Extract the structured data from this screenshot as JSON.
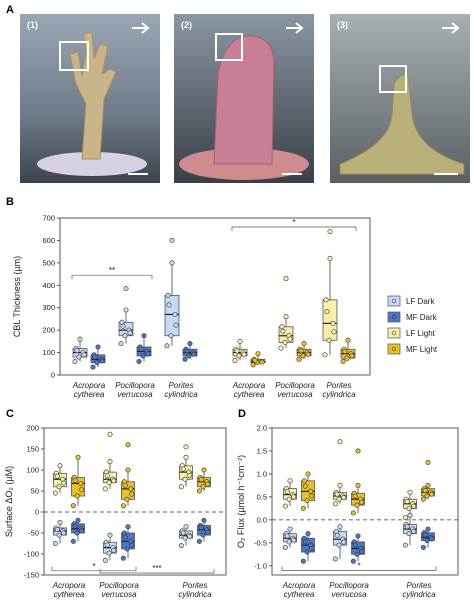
{
  "panels": {
    "a": "A",
    "b": "B",
    "c": "C",
    "d": "D"
  },
  "photos": [
    {
      "num": "(1)",
      "subject": "branching coral (Acropora)",
      "color": "#c9b48a"
    },
    {
      "num": "(2)",
      "subject": "massive coral (Pocillopora)",
      "color": "#c87f94"
    },
    {
      "num": "(3)",
      "subject": "columnar coral (Porites)",
      "color": "#b8b078"
    }
  ],
  "colors": {
    "lf_dark": "#c5daf2",
    "mf_dark": "#4a78c8",
    "lf_light": "#f6efae",
    "mf_light": "#e6c22a"
  },
  "species": [
    {
      "genus": "Acropora",
      "epithet": "cytherea"
    },
    {
      "genus": "Pocillopora",
      "epithet": "verrucosa"
    },
    {
      "genus": "Porites",
      "epithet": "cylindrica"
    }
  ],
  "legend": [
    "LF Dark",
    "MF Dark",
    "LF Light",
    "MF Light"
  ],
  "chart_data": [
    {
      "id": "B",
      "type": "box",
      "ylabel": "CBL Thickness (µm)",
      "ylim": [
        0,
        700
      ],
      "yticks": [
        0,
        100,
        200,
        300,
        400,
        500,
        600,
        700
      ],
      "groups": [
        {
          "name": "LF Dark",
          "species": "Acropora cytherea",
          "q1": 80,
          "median": 100,
          "q3": 118,
          "lo": 60,
          "hi": 160
        },
        {
          "name": "MF Dark",
          "species": "Acropora cytherea",
          "q1": 55,
          "median": 70,
          "q3": 90,
          "lo": 35,
          "hi": 125
        },
        {
          "name": "LF Dark",
          "species": "Pocillopora verrucosa",
          "q1": 175,
          "median": 200,
          "q3": 235,
          "lo": 140,
          "hi": 290
        },
        {
          "name": "MF Dark",
          "species": "Pocillopora verrucosa",
          "q1": 85,
          "median": 105,
          "q3": 125,
          "lo": 60,
          "hi": 175
        },
        {
          "name": "LF Dark",
          "species": "Porites cylindrica",
          "q1": 175,
          "median": 270,
          "q3": 355,
          "lo": 130,
          "hi": 500
        },
        {
          "name": "MF Dark",
          "species": "Porites cylindrica",
          "q1": 85,
          "median": 100,
          "q3": 115,
          "lo": 70,
          "hi": 140
        },
        {
          "name": "LF Light",
          "species": "Acropora cytherea",
          "q1": 85,
          "median": 100,
          "q3": 115,
          "lo": 65,
          "hi": 150
        },
        {
          "name": "MF Light",
          "species": "Acropora cytherea",
          "q1": 55,
          "median": 60,
          "q3": 70,
          "lo": 45,
          "hi": 95
        },
        {
          "name": "LF Light",
          "species": "Pocillopora verrucosa",
          "q1": 145,
          "median": 175,
          "q3": 215,
          "lo": 120,
          "hi": 260
        },
        {
          "name": "MF Light",
          "species": "Pocillopora verrucosa",
          "q1": 85,
          "median": 100,
          "q3": 115,
          "lo": 70,
          "hi": 140
        },
        {
          "name": "LF Light",
          "species": "Porites cylindrica",
          "q1": 155,
          "median": 230,
          "q3": 335,
          "lo": 90,
          "hi": 520
        },
        {
          "name": "MF Light",
          "species": "Porites cylindrica",
          "q1": 75,
          "median": 95,
          "q3": 115,
          "lo": 60,
          "hi": 155
        }
      ],
      "outliers": [
        385,
        430,
        600,
        640
      ],
      "significance": [
        "**",
        "*"
      ]
    },
    {
      "id": "C",
      "type": "box",
      "ylabel": "Surface ΔO₂ (µM)",
      "ylim": [
        -150,
        200
      ],
      "yticks": [
        -150,
        -100,
        -50,
        0,
        50,
        100,
        150,
        200
      ],
      "groups": [
        {
          "name": "LF Light",
          "species": "Acropora cytherea",
          "q1": 60,
          "median": 78,
          "q3": 92,
          "lo": 45,
          "hi": 110
        },
        {
          "name": "MF Light",
          "species": "Acropora cytherea",
          "q1": 38,
          "median": 68,
          "q3": 82,
          "lo": 15,
          "hi": 130
        },
        {
          "name": "LF Light",
          "species": "Pocillopora verrucosa",
          "q1": 70,
          "median": 78,
          "q3": 95,
          "lo": 55,
          "hi": 120
        },
        {
          "name": "MF Light",
          "species": "Pocillopora verrucosa",
          "q1": 30,
          "median": 55,
          "q3": 72,
          "lo": 15,
          "hi": 100
        },
        {
          "name": "LF Light",
          "species": "Porites cylindrica",
          "q1": 78,
          "median": 95,
          "q3": 110,
          "lo": 60,
          "hi": 130
        },
        {
          "name": "MF Light",
          "species": "Porites cylindrica",
          "q1": 60,
          "median": 72,
          "q3": 82,
          "lo": 50,
          "hi": 100
        },
        {
          "name": "LF Dark",
          "species": "Acropora cytherea",
          "q1": -55,
          "median": -45,
          "q3": -38,
          "lo": -75,
          "hi": -25
        },
        {
          "name": "MF Dark",
          "species": "Acropora cytherea",
          "q1": -50,
          "median": -40,
          "q3": -28,
          "lo": -70,
          "hi": -20
        },
        {
          "name": "LF Dark",
          "species": "Pocillopora verrucosa",
          "q1": -98,
          "median": -85,
          "q3": -72,
          "lo": -115,
          "hi": -55
        },
        {
          "name": "MF Dark",
          "species": "Pocillopora verrucosa",
          "q1": -88,
          "median": -70,
          "q3": -50,
          "lo": -110,
          "hi": -35
        },
        {
          "name": "LF Dark",
          "species": "Porites cylindrica",
          "q1": -62,
          "median": -55,
          "q3": -45,
          "lo": -80,
          "hi": -35
        },
        {
          "name": "MF Dark",
          "species": "Porites cylindrica",
          "q1": -55,
          "median": -42,
          "q3": -32,
          "lo": -70,
          "hi": -20
        }
      ],
      "outliers": [
        185,
        160,
        155
      ],
      "significance": [
        "*",
        "***"
      ]
    },
    {
      "id": "D",
      "type": "box",
      "ylabel": "O₂ Flux (µmol h⁻¹cm⁻²)",
      "ylim": [
        -1.2,
        2.0
      ],
      "yticks": [
        -1.0,
        -0.5,
        0.0,
        0.5,
        1.0,
        1.5,
        2.0
      ],
      "groups": [
        {
          "name": "LF Light",
          "species": "Acropora cytherea",
          "q1": 0.45,
          "median": 0.55,
          "q3": 0.68,
          "lo": 0.3,
          "hi": 0.85
        },
        {
          "name": "MF Light",
          "species": "Acropora cytherea",
          "q1": 0.42,
          "median": 0.62,
          "q3": 0.85,
          "lo": 0.25,
          "hi": 1.0
        },
        {
          "name": "LF Light",
          "species": "Pocillopora verrucosa",
          "q1": 0.45,
          "median": 0.52,
          "q3": 0.6,
          "lo": 0.35,
          "hi": 0.75
        },
        {
          "name": "MF Light",
          "species": "Pocillopora verrucosa",
          "q1": 0.32,
          "median": 0.45,
          "q3": 0.58,
          "lo": 0.15,
          "hi": 0.75
        },
        {
          "name": "LF Light",
          "species": "Porites cylindrica",
          "q1": 0.25,
          "median": 0.35,
          "q3": 0.45,
          "lo": 0.05,
          "hi": 0.6
        },
        {
          "name": "MF Light",
          "species": "Porites cylindrica",
          "q1": 0.52,
          "median": 0.6,
          "q3": 0.68,
          "lo": 0.45,
          "hi": 0.75
        },
        {
          "name": "LF Dark",
          "species": "Acropora cytherea",
          "q1": -0.48,
          "median": -0.4,
          "q3": -0.3,
          "lo": -0.6,
          "hi": -0.2
        },
        {
          "name": "MF Dark",
          "species": "Acropora cytherea",
          "q1": -0.7,
          "median": -0.55,
          "q3": -0.4,
          "lo": -0.9,
          "hi": -0.3
        },
        {
          "name": "LF Dark",
          "species": "Pocillopora verrucosa",
          "q1": -0.55,
          "median": -0.42,
          "q3": -0.25,
          "lo": -0.85,
          "hi": -0.15
        },
        {
          "name": "MF Dark",
          "species": "Pocillopora verrucosa",
          "q1": -0.75,
          "median": -0.62,
          "q3": -0.48,
          "lo": -0.9,
          "hi": -0.35
        },
        {
          "name": "LF Dark",
          "species": "Porites cylindrica",
          "q1": -0.3,
          "median": -0.2,
          "q3": -0.1,
          "lo": -0.55,
          "hi": 0.1
        },
        {
          "name": "MF Dark",
          "species": "Porites cylindrica",
          "q1": -0.45,
          "median": -0.38,
          "q3": -0.28,
          "lo": -0.6,
          "hi": -0.2
        }
      ],
      "outliers": [
        1.7,
        1.5,
        1.25
      ],
      "significance": [
        "*"
      ]
    }
  ]
}
